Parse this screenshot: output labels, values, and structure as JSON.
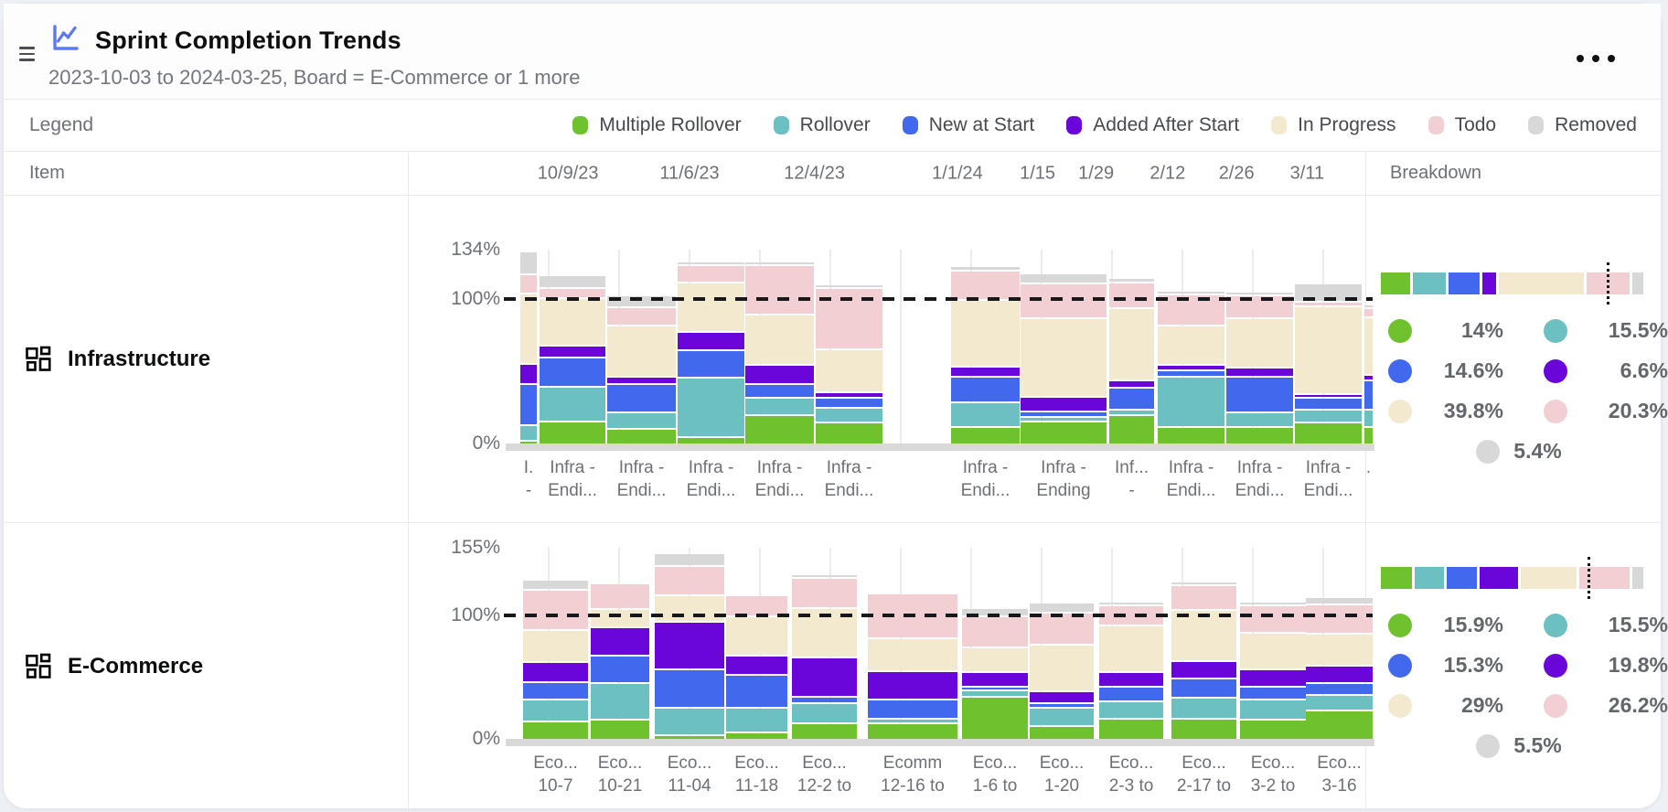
{
  "header": {
    "title": "Sprint Completion Trends",
    "subtitle": "2023-10-03 to 2024-03-25, Board = E-Commerce or 1 more"
  },
  "colors": {
    "multiple_rollover": "#6fc22d",
    "rollover": "#6cc0c1",
    "new_at_start": "#4268ee",
    "added_after_start": "#6a06da",
    "in_progress": "#f3e9ce",
    "todo": "#f1cfd3",
    "removed": "#d8d8d8",
    "accent_icon": "#5b79f2",
    "reference_line": "#17181c"
  },
  "legend": {
    "label": "Legend",
    "items": [
      {
        "key": "multiple_rollover",
        "label": "Multiple Rollover"
      },
      {
        "key": "rollover",
        "label": "Rollover"
      },
      {
        "key": "new_at_start",
        "label": "New at Start"
      },
      {
        "key": "added_after_start",
        "label": "Added After Start"
      },
      {
        "key": "in_progress",
        "label": "In Progress"
      },
      {
        "key": "todo",
        "label": "Todo"
      },
      {
        "key": "removed",
        "label": "Removed"
      }
    ]
  },
  "table": {
    "item_header": "Item",
    "breakdown_header": "Breakdown",
    "date_ticks": [
      {
        "label": "10/9/23",
        "pos": 6.6
      },
      {
        "label": "11/6/23",
        "pos": 20.7
      },
      {
        "label": "12/4/23",
        "pos": 35.2
      },
      {
        "label": "1/1/24",
        "pos": 51.8
      },
      {
        "label": "1/15",
        "pos": 61.1
      },
      {
        "label": "1/29",
        "pos": 67.9
      },
      {
        "label": "2/12",
        "pos": 76.2
      },
      {
        "label": "2/26",
        "pos": 84.2
      },
      {
        "label": "3/11",
        "pos": 92.4
      }
    ],
    "gridline_positions": [
      4.2,
      12.4,
      20.6,
      28.8,
      36.9,
      45.1,
      53.3,
      61.5,
      69.6,
      77.8,
      86.0,
      94.2
    ]
  },
  "chart_data": [
    {
      "type": "stacked_bar",
      "board": "Infrastructure",
      "y_max": 134,
      "y_ticks": [
        "134%",
        "100%",
        "0%"
      ],
      "reference_line_pct": 100,
      "series_keys": [
        "multiple_rollover",
        "rollover",
        "new_at_start",
        "added_after_start",
        "in_progress",
        "todo",
        "removed"
      ],
      "sprints": [
        {
          "label": [
            "I.",
            "-"
          ],
          "x": 10,
          "w": 18,
          "values": [
            2,
            11,
            28,
            14,
            49,
            13,
            16
          ]
        },
        {
          "label": [
            "Infra -",
            "Endi..."
          ],
          "x": 31,
          "w": 72,
          "values": [
            16,
            24,
            20,
            8,
            33,
            7,
            9
          ]
        },
        {
          "label": [
            "Infra -",
            "Endi..."
          ],
          "x": 105,
          "w": 75,
          "values": [
            11,
            11,
            20,
            5,
            35,
            13,
            8
          ]
        },
        {
          "label": [
            "Infra -",
            "Endi..."
          ],
          "x": 182,
          "w": 73,
          "values": [
            5,
            41,
            19,
            13,
            34,
            12,
            1
          ]
        },
        {
          "label": [
            "Infra -",
            "Endi..."
          ],
          "x": 256,
          "w": 75,
          "values": [
            20,
            12,
            10,
            13,
            35,
            34,
            1
          ]
        },
        {
          "label": [
            "Infra -",
            "Endi..."
          ],
          "x": 333,
          "w": 73,
          "values": [
            15,
            10,
            7,
            4,
            30,
            42,
            1
          ]
        },
        {
          "label": [
            "Infra -",
            "Endi..."
          ],
          "x": 481,
          "w": 75,
          "values": [
            12,
            17,
            18,
            7,
            46,
            20,
            3
          ]
        },
        {
          "label": [
            "Infra -",
            "Ending"
          ],
          "x": 557,
          "w": 94,
          "values": [
            16,
            3,
            4,
            10,
            54,
            24,
            7
          ]
        },
        {
          "label": [
            "Inf...",
            "-"
          ],
          "x": 654,
          "w": 49,
          "values": [
            20,
            4,
            15,
            5,
            50,
            18,
            3
          ]
        },
        {
          "label": [
            "Infra -",
            "Endi..."
          ],
          "x": 707,
          "w": 73,
          "values": [
            12,
            35,
            4,
            4,
            27,
            22,
            1
          ]
        },
        {
          "label": [
            "Infra -",
            "Endi..."
          ],
          "x": 782,
          "w": 73,
          "values": [
            12,
            10,
            25,
            6,
            34,
            16,
            2
          ]
        },
        {
          "label": [
            "Infra -",
            "Endi..."
          ],
          "x": 857,
          "w": 73,
          "values": [
            15,
            9,
            8,
            1,
            61,
            3,
            13
          ]
        },
        {
          "label": [
            ".",
            ""
          ],
          "x": 933,
          "w": 9,
          "values": [
            12,
            12,
            20,
            4,
            40,
            6,
            1
          ]
        }
      ],
      "breakdown": {
        "values": [
          14,
          15.5,
          14.6,
          6.6,
          39.8,
          20.3,
          5.4
        ],
        "labels": [
          "14%",
          "15.5%",
          "14.6%",
          "6.6%",
          "39.8%",
          "20.3%",
          "5.4%"
        ],
        "total_pct": 116.2
      }
    },
    {
      "type": "stacked_bar",
      "board": "E-Commerce",
      "y_max": 155,
      "y_ticks": [
        "155%",
        "100%",
        "0%"
      ],
      "reference_line_pct": 100,
      "series_keys": [
        "multiple_rollover",
        "rollover",
        "new_at_start",
        "added_after_start",
        "in_progress",
        "todo",
        "removed"
      ],
      "sprints": [
        {
          "label": [
            "Eco...",
            "10-7"
          ],
          "x": 13,
          "w": 71,
          "values": [
            15,
            18,
            14,
            16,
            26,
            33,
            8
          ]
        },
        {
          "label": [
            "Eco...",
            "10-21"
          ],
          "x": 87,
          "w": 64,
          "values": [
            16,
            30,
            22,
            23,
            15,
            21,
            0
          ]
        },
        {
          "label": [
            "Eco...",
            "11-04"
          ],
          "x": 157,
          "w": 76,
          "values": [
            4,
            22,
            31,
            39,
            21,
            24,
            10
          ]
        },
        {
          "label": [
            "Eco...",
            "11-18"
          ],
          "x": 235,
          "w": 67,
          "values": [
            6,
            20,
            27,
            15,
            32,
            17,
            0
          ]
        },
        {
          "label": [
            "Eco...",
            "12-2 to"
          ],
          "x": 307,
          "w": 71,
          "values": [
            13,
            17,
            5,
            32,
            40,
            24,
            3
          ]
        },
        {
          "label": [
            "Ecomm",
            "12-16 to"
          ],
          "x": 390,
          "w": 98,
          "values": [
            13,
            4,
            16,
            23,
            26,
            37,
            0
          ]
        },
        {
          "label": [
            "Eco...",
            "1-6 to"
          ],
          "x": 493,
          "w": 72,
          "values": [
            35,
            5,
            2,
            12,
            20,
            25,
            7
          ]
        },
        {
          "label": [
            "Eco...",
            "1-20"
          ],
          "x": 567,
          "w": 70,
          "values": [
            11,
            15,
            4,
            9,
            38,
            26,
            8
          ]
        },
        {
          "label": [
            "Eco...",
            "2-3 to"
          ],
          "x": 643,
          "w": 70,
          "values": [
            17,
            14,
            12,
            12,
            38,
            16,
            3
          ]
        },
        {
          "label": [
            "Eco...",
            "2-17 to"
          ],
          "x": 722,
          "w": 71,
          "values": [
            17,
            17,
            16,
            14,
            41,
            20,
            2
          ]
        },
        {
          "label": [
            "Eco...",
            "3-2 to"
          ],
          "x": 797,
          "w": 72,
          "values": [
            16,
            17,
            10,
            14,
            30,
            22,
            3
          ]
        },
        {
          "label": [
            "Eco...",
            "3-16"
          ],
          "x": 869,
          "w": 73,
          "values": [
            24,
            12,
            10,
            14,
            26,
            24,
            6
          ]
        }
      ],
      "breakdown": {
        "values": [
          15.9,
          15.5,
          15.3,
          19.8,
          29,
          26.2,
          5.5
        ],
        "labels": [
          "15.9%",
          "15.5%",
          "15.3%",
          "19.8%",
          "29%",
          "26.2%",
          "5.5%"
        ],
        "total_pct": 127.2
      }
    }
  ]
}
